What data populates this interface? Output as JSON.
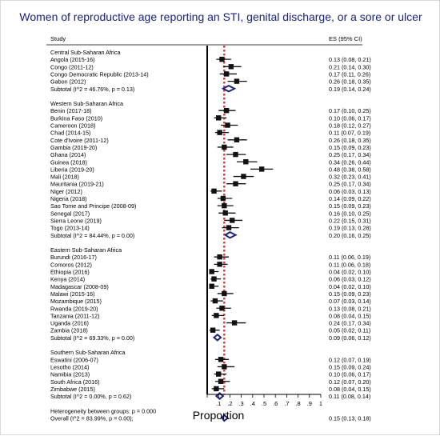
{
  "title": "Women of reproductive age reporting an STI, genital discharge, or a sore or ulcer",
  "chart_data": {
    "type": "forest",
    "title": "Women of reproductive age reporting an STI, genital discharge, or a sore or ulcer",
    "col_study": "Study",
    "col_es": "ES (95% CI)",
    "xlabel": "Proportion",
    "xticks": [
      ".1",
      ".2",
      ".3",
      ".4",
      ".5",
      ".6",
      ".7",
      ".8",
      ".9",
      "1"
    ],
    "xlim": [
      0,
      1
    ],
    "null_line": 0,
    "overall_line": 0.15,
    "rows": [
      {
        "kind": "header",
        "label": "Central Sub-Saharan Africa"
      },
      {
        "kind": "study",
        "label": "Angola (2015-16)",
        "es": 0.13,
        "lo": 0.08,
        "hi": 0.21,
        "text": "0.13 (0.08, 0.21)"
      },
      {
        "kind": "study",
        "label": "Congo (2011-12)",
        "es": 0.21,
        "lo": 0.14,
        "hi": 0.3,
        "text": "0.21 (0.14, 0.30)"
      },
      {
        "kind": "study",
        "label": "Congo Democratic Republic (2013-14)",
        "es": 0.17,
        "lo": 0.11,
        "hi": 0.26,
        "text": "0.17 (0.11, 0.26)"
      },
      {
        "kind": "study",
        "label": "Gabon (2012)",
        "es": 0.26,
        "lo": 0.18,
        "hi": 0.35,
        "text": "0.26 (0.18, 0.35)"
      },
      {
        "kind": "subtotal",
        "label": "Subtotal  (I^2 = 46.76%, p = 0.13)",
        "es": 0.19,
        "lo": 0.14,
        "hi": 0.24,
        "text": "0.19 (0.14, 0.24)"
      },
      {
        "kind": "gap"
      },
      {
        "kind": "header",
        "label": "Western Sub-Saharan Africa"
      },
      {
        "kind": "study",
        "label": "Benin (2017-18)",
        "es": 0.17,
        "lo": 0.1,
        "hi": 0.25,
        "text": "0.17 (0.10, 0.25)"
      },
      {
        "kind": "study",
        "label": "Burkina Faso (2010)",
        "es": 0.1,
        "lo": 0.06,
        "hi": 0.17,
        "text": "0.10 (0.06, 0.17)"
      },
      {
        "kind": "study",
        "label": "Cameroon (2018)",
        "es": 0.18,
        "lo": 0.12,
        "hi": 0.27,
        "text": "0.18 (0.12, 0.27)"
      },
      {
        "kind": "study",
        "label": "Chad (2014-15)",
        "es": 0.11,
        "lo": 0.07,
        "hi": 0.19,
        "text": "0.11 (0.07, 0.19)"
      },
      {
        "kind": "study",
        "label": "Cote d'Ivoire (2011-12)",
        "es": 0.26,
        "lo": 0.18,
        "hi": 0.35,
        "text": "0.26 (0.18, 0.35)"
      },
      {
        "kind": "study",
        "label": "Gambia (2019-20)",
        "es": 0.15,
        "lo": 0.09,
        "hi": 0.23,
        "text": "0.15 (0.09, 0.23)"
      },
      {
        "kind": "study",
        "label": "Ghana (2014)",
        "es": 0.25,
        "lo": 0.17,
        "hi": 0.34,
        "text": "0.25 (0.17, 0.34)"
      },
      {
        "kind": "study",
        "label": "Guinea (2018)",
        "es": 0.34,
        "lo": 0.26,
        "hi": 0.44,
        "text": "0.34 (0.26, 0.44)"
      },
      {
        "kind": "study",
        "label": "Liberia (2019-20)",
        "es": 0.48,
        "lo": 0.38,
        "hi": 0.58,
        "text": "0.48 (0.38, 0.58)"
      },
      {
        "kind": "study",
        "label": "Mali (2018)",
        "es": 0.32,
        "lo": 0.23,
        "hi": 0.41,
        "text": "0.32 (0.23, 0.41)"
      },
      {
        "kind": "study",
        "label": "Mauritania (2019-21)",
        "es": 0.25,
        "lo": 0.17,
        "hi": 0.34,
        "text": "0.25 (0.17, 0.34)"
      },
      {
        "kind": "study",
        "label": "Niger (2012)",
        "es": 0.06,
        "lo": 0.03,
        "hi": 0.13,
        "text": "0.06 (0.03, 0.13)"
      },
      {
        "kind": "study",
        "label": "Nigeria (2018)",
        "es": 0.14,
        "lo": 0.09,
        "hi": 0.22,
        "text": "0.14 (0.09, 0.22)"
      },
      {
        "kind": "study",
        "label": "Sao Tome and Principe (2008-09)",
        "es": 0.15,
        "lo": 0.09,
        "hi": 0.23,
        "text": "0.15 (0.09, 0.23)"
      },
      {
        "kind": "study",
        "label": "Senegal (2017)",
        "es": 0.16,
        "lo": 0.1,
        "hi": 0.25,
        "text": "0.16 (0.10, 0.25)"
      },
      {
        "kind": "study",
        "label": "Sierra Leone (2019)",
        "es": 0.22,
        "lo": 0.15,
        "hi": 0.31,
        "text": "0.22 (0.15, 0.31)"
      },
      {
        "kind": "study",
        "label": "Togo (2013-14)",
        "es": 0.19,
        "lo": 0.13,
        "hi": 0.28,
        "text": "0.19 (0.13, 0.28)"
      },
      {
        "kind": "subtotal",
        "label": "Subtotal  (I^2 = 84.44%, p = 0.00)",
        "es": 0.2,
        "lo": 0.16,
        "hi": 0.25,
        "text": "0.20 (0.16, 0.25)"
      },
      {
        "kind": "gap"
      },
      {
        "kind": "header",
        "label": "Eastern Sub-Saharan Africa"
      },
      {
        "kind": "study",
        "label": "Burundi (2016-17)",
        "es": 0.11,
        "lo": 0.06,
        "hi": 0.19,
        "text": "0.11 (0.06, 0.19)"
      },
      {
        "kind": "study",
        "label": "Comoros (2012)",
        "es": 0.11,
        "lo": 0.06,
        "hi": 0.18,
        "text": "0.11 (0.06, 0.18)"
      },
      {
        "kind": "study",
        "label": "Ethiopia (2016)",
        "es": 0.04,
        "lo": 0.02,
        "hi": 0.1,
        "text": "0.04 (0.02, 0.10)"
      },
      {
        "kind": "study",
        "label": "Kenya (2014)",
        "es": 0.06,
        "lo": 0.03,
        "hi": 0.12,
        "text": "0.06 (0.03, 0.12)"
      },
      {
        "kind": "study",
        "label": "Madagascar (2008-09)",
        "es": 0.04,
        "lo": 0.02,
        "hi": 0.1,
        "text": "0.04 (0.02, 0.10)"
      },
      {
        "kind": "study",
        "label": "Malawi (2015-16)",
        "es": 0.15,
        "lo": 0.09,
        "hi": 0.23,
        "text": "0.15 (0.09, 0.23)"
      },
      {
        "kind": "study",
        "label": "Mozambique (2015)",
        "es": 0.07,
        "lo": 0.03,
        "hi": 0.14,
        "text": "0.07 (0.03, 0.14)"
      },
      {
        "kind": "study",
        "label": "Rwanda (2019-20)",
        "es": 0.13,
        "lo": 0.08,
        "hi": 0.21,
        "text": "0.13 (0.08, 0.21)"
      },
      {
        "kind": "study",
        "label": "Tanzania (2011-12)",
        "es": 0.08,
        "lo": 0.04,
        "hi": 0.15,
        "text": "0.08 (0.04, 0.15)"
      },
      {
        "kind": "study",
        "label": "Uganda (2016)",
        "es": 0.24,
        "lo": 0.17,
        "hi": 0.34,
        "text": "0.24 (0.17, 0.34)"
      },
      {
        "kind": "study",
        "label": "Zambia (2018)",
        "es": 0.05,
        "lo": 0.02,
        "hi": 0.11,
        "text": "0.05 (0.02, 0.11)"
      },
      {
        "kind": "subtotal",
        "label": "Subtotal  (I^2 = 69.33%, p = 0.00)",
        "es": 0.09,
        "lo": 0.06,
        "hi": 0.12,
        "text": "0.09 (0.06, 0.12)"
      },
      {
        "kind": "gap"
      },
      {
        "kind": "header",
        "label": "Southern Sub-Saharan Africa"
      },
      {
        "kind": "study",
        "label": "Eswatini (2006-07)",
        "es": 0.12,
        "lo": 0.07,
        "hi": 0.19,
        "text": "0.12 (0.07, 0.19)"
      },
      {
        "kind": "study",
        "label": "Lesotho (2014)",
        "es": 0.15,
        "lo": 0.09,
        "hi": 0.24,
        "text": "0.15 (0.09, 0.24)"
      },
      {
        "kind": "study",
        "label": "Namibia (2013)",
        "es": 0.1,
        "lo": 0.06,
        "hi": 0.17,
        "text": "0.10 (0.06, 0.17)"
      },
      {
        "kind": "study",
        "label": "South Africa (2016)",
        "es": 0.12,
        "lo": 0.07,
        "hi": 0.2,
        "text": "0.12 (0.07, 0.20)"
      },
      {
        "kind": "study",
        "label": "Zimbabwe (2015)",
        "es": 0.08,
        "lo": 0.04,
        "hi": 0.15,
        "text": "0.08 (0.04, 0.15)"
      },
      {
        "kind": "subtotal",
        "label": "Subtotal  (I^2 = 0.00%, p = 0.62)",
        "es": 0.11,
        "lo": 0.08,
        "hi": 0.14,
        "text": "0.11 (0.08, 0.14)"
      },
      {
        "kind": "gap"
      },
      {
        "kind": "header",
        "label": "Heterogeneity between groups: p = 0.000"
      },
      {
        "kind": "subtotal",
        "label": "Overall  (I^2 = 83.99%, p = 0.00);",
        "es": 0.15,
        "lo": 0.13,
        "hi": 0.18,
        "text": "0.15 (0.13, 0.18)"
      }
    ],
    "colors": {
      "title": "#1a237e",
      "marker": "#111111",
      "diamond": "#1a237e",
      "overall_line": "#e53935"
    }
  }
}
